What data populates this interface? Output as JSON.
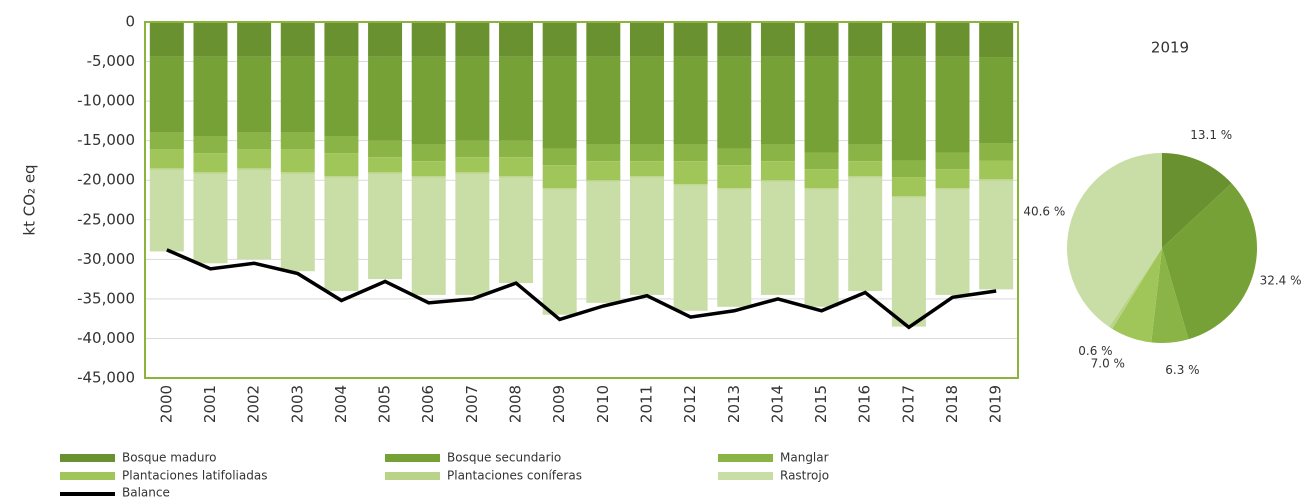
{
  "chart_data": [
    {
      "type": "stacked_bar",
      "y_label": "kt CO₂ eq",
      "categories": [
        "2000",
        "2001",
        "2002",
        "2003",
        "2004",
        "2005",
        "2006",
        "2007",
        "2008",
        "2009",
        "2010",
        "2011",
        "2012",
        "2013",
        "2014",
        "2015",
        "2016",
        "2017",
        "2018",
        "2019"
      ],
      "series": [
        {
          "name": "Bosque maduro",
          "color": "#6a9130",
          "values": [
            -4400,
            -4400,
            -4400,
            -4400,
            -4400,
            -4400,
            -4400,
            -4400,
            -4400,
            -4400,
            -4400,
            -4400,
            -4400,
            -4400,
            -4400,
            -4400,
            -4400,
            -4400,
            -4400,
            -4430
          ]
        },
        {
          "name": "Bosque secundario",
          "color": "#76a136",
          "values": [
            -9600,
            -10100,
            -9600,
            -9600,
            -10100,
            -10600,
            -11100,
            -10600,
            -10600,
            -11600,
            -11100,
            -11100,
            -11100,
            -11600,
            -11100,
            -12100,
            -11100,
            -13100,
            -12100,
            -10950
          ]
        },
        {
          "name": "Manglar",
          "color": "#8ab445",
          "values": [
            -2100,
            -2100,
            -2100,
            -2100,
            -2100,
            -2100,
            -2100,
            -2100,
            -2100,
            -2100,
            -2100,
            -2100,
            -2100,
            -2100,
            -2100,
            -2100,
            -2100,
            -2100,
            -2100,
            -2130
          ]
        },
        {
          "name": "Plantaciones latifoliadas",
          "color": "#a0c65a",
          "values": [
            -2400,
            -2400,
            -2400,
            -2900,
            -2900,
            -1900,
            -1900,
            -1900,
            -2400,
            -2900,
            -2400,
            -1900,
            -2900,
            -2900,
            -2400,
            -2400,
            -1900,
            -2400,
            -2400,
            -2370
          ]
        },
        {
          "name": "Plantaciones coníferas",
          "color": "#b9d488",
          "values": [
            -200,
            -200,
            -200,
            -200,
            -200,
            -200,
            -200,
            -200,
            -200,
            -200,
            -200,
            -200,
            -200,
            -200,
            -200,
            -200,
            -200,
            -200,
            -200,
            -200
          ]
        },
        {
          "name": "Rastrojo",
          "color": "#c9dda6",
          "values": [
            -10300,
            -11300,
            -11300,
            -12300,
            -14300,
            -13300,
            -14800,
            -15300,
            -13300,
            -15800,
            -15300,
            -14800,
            -15800,
            -14800,
            -14300,
            -14800,
            -14300,
            -16300,
            -13300,
            -13720
          ]
        }
      ],
      "line": {
        "name": "Balance",
        "color": "#000000",
        "values": [
          -28800,
          -31200,
          -30500,
          -31800,
          -35200,
          -32800,
          -35500,
          -35000,
          -33000,
          -37600,
          -35900,
          -34600,
          -37300,
          -36500,
          -35000,
          -36500,
          -34200,
          -38600,
          -34800,
          -34000
        ]
      },
      "ylim": [
        0,
        -45000
      ],
      "yticks": [
        0,
        {
          "value": -5000,
          "label": "-5,000"
        },
        {
          "value": -10000,
          "label": "-10,000"
        },
        {
          "value": -15000,
          "label": "-15,000"
        },
        {
          "value": -20000,
          "label": "-20,000"
        },
        {
          "value": -25000,
          "label": "-25,000"
        },
        {
          "value": -30000,
          "label": "-30,000"
        },
        {
          "value": -35000,
          "label": "-35,000"
        },
        {
          "value": -40000,
          "label": "-40,000"
        },
        {
          "value": -45000,
          "label": "-45,000"
        }
      ],
      "grid": true
    },
    {
      "type": "pie",
      "title": "2019",
      "categories": [
        "Bosque maduro",
        "Bosque secundario",
        "Manglar",
        "Plantaciones latifoliadas",
        "Plantaciones coníferas",
        "Rastrojo"
      ],
      "values": [
        13.1,
        32.4,
        6.3,
        7.0,
        0.6,
        40.6
      ],
      "value_labels": [
        "13.1 %",
        "32.4 %",
        "6.3 %",
        "7.0 %",
        "0.6 %",
        "40.6 %"
      ],
      "colors": [
        "#6a9130",
        "#76a136",
        "#8ab445",
        "#a0c65a",
        "#b9d488",
        "#c9dda6"
      ]
    }
  ]
}
